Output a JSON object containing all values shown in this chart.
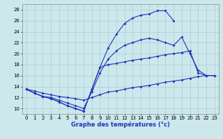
{
  "xlabel": "Graphe des températures (°c)",
  "bg_color": "#cce8ec",
  "grid_color": "#aaccd0",
  "line_color": "#2233bb",
  "xlim": [
    -0.5,
    23.5
  ],
  "ylim": [
    9,
    29
  ],
  "xticks": [
    0,
    1,
    2,
    3,
    4,
    5,
    6,
    7,
    8,
    9,
    10,
    11,
    12,
    13,
    14,
    15,
    16,
    17,
    18,
    19,
    20,
    21,
    22,
    23
  ],
  "yticks": [
    10,
    12,
    14,
    16,
    18,
    20,
    22,
    24,
    26,
    28
  ],
  "series": [
    {
      "x": [
        0,
        1,
        2,
        3,
        4,
        5,
        6,
        7,
        8,
        9,
        10,
        11,
        12,
        13,
        14,
        15,
        16,
        17,
        18
      ],
      "y": [
        13.5,
        12.8,
        12.2,
        11.8,
        11.2,
        10.5,
        10.0,
        9.5,
        13.5,
        17.5,
        21.0,
        23.5,
        25.5,
        26.5,
        27.0,
        27.2,
        27.8,
        27.8,
        26.0
      ]
    },
    {
      "x": [
        0,
        1,
        2,
        3,
        4,
        5,
        6,
        7,
        8,
        9,
        10,
        11,
        12,
        13,
        14,
        15,
        16,
        17,
        18,
        19,
        20,
        21,
        22
      ],
      "y": [
        13.5,
        12.8,
        12.2,
        12.0,
        11.5,
        11.0,
        10.5,
        10.0,
        13.0,
        16.5,
        19.0,
        20.5,
        21.5,
        22.0,
        22.5,
        22.8,
        22.5,
        22.0,
        21.5,
        23.0,
        20.0,
        17.0,
        16.0
      ]
    },
    {
      "x": [
        0,
        1,
        2,
        3,
        4,
        5,
        6,
        7,
        8,
        9,
        10,
        11,
        12,
        13,
        14,
        15,
        16,
        17,
        18,
        19,
        20,
        21,
        22,
        23
      ],
      "y": [
        13.5,
        13.2,
        12.8,
        12.5,
        12.2,
        12.0,
        11.8,
        11.5,
        12.0,
        12.5,
        13.0,
        13.2,
        13.5,
        13.8,
        14.0,
        14.2,
        14.5,
        14.8,
        15.0,
        15.2,
        15.5,
        15.8,
        16.0,
        16.0
      ]
    },
    {
      "x": [
        0,
        1,
        2,
        3,
        4,
        5,
        6,
        7,
        8,
        9,
        10,
        11,
        12,
        13,
        14,
        15,
        16,
        17,
        18,
        19,
        20,
        21,
        22,
        23
      ],
      "y": [
        13.5,
        12.8,
        12.2,
        11.8,
        11.2,
        10.5,
        10.0,
        9.5,
        13.5,
        17.5,
        18.0,
        18.2,
        18.5,
        18.8,
        19.0,
        19.2,
        19.5,
        19.8,
        20.0,
        20.2,
        20.5,
        16.5,
        16.0,
        16.0
      ]
    }
  ]
}
